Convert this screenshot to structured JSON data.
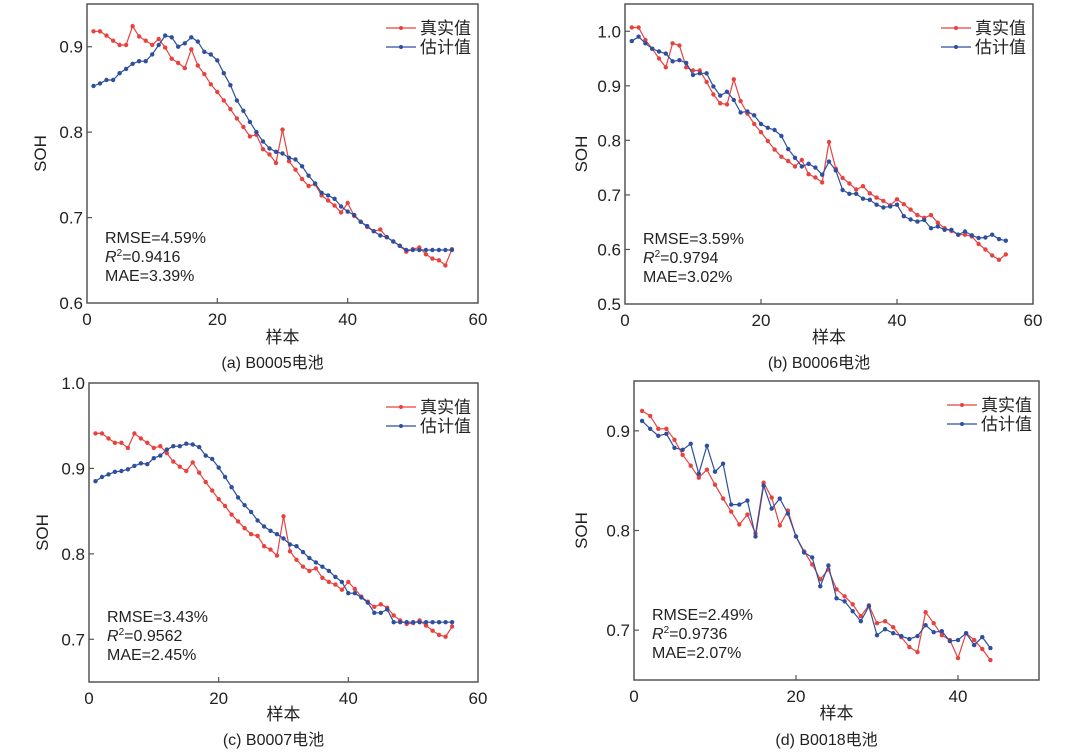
{
  "colors": {
    "real": "#e8423f",
    "estimate": "#2e4f9e",
    "axis": "#555555"
  },
  "chart_data": [
    {
      "id": "a",
      "type": "line",
      "caption": "(a) B0005电池",
      "xlabel": "样本",
      "ylabel": "SOH",
      "xlim": [
        0,
        60
      ],
      "ylim": [
        0.6,
        0.95
      ],
      "xticks": [
        0,
        20,
        40,
        60
      ],
      "yticks": [
        0.6,
        0.7,
        0.8,
        0.9
      ],
      "ytick_labels": [
        "0.6",
        "0.7",
        "0.8",
        "0.9"
      ],
      "legend": {
        "position": "top-right",
        "entries": [
          "真实值",
          "估计值"
        ]
      },
      "metrics": {
        "rmse": "RMSE=4.59%",
        "r2_symbol": "R",
        "r2_sup": "2",
        "r2_value": "=0.9416",
        "mae": "MAE=3.39%"
      },
      "series": [
        {
          "name": "真实值",
          "color": "#e8423f",
          "values": [
            0.918,
            0.918,
            0.913,
            0.907,
            0.902,
            0.902,
            0.924,
            0.912,
            0.907,
            0.902,
            0.909,
            0.899,
            0.886,
            0.881,
            0.875,
            0.897,
            0.878,
            0.868,
            0.856,
            0.847,
            0.837,
            0.827,
            0.816,
            0.806,
            0.795,
            0.797,
            0.78,
            0.774,
            0.764,
            0.803,
            0.766,
            0.756,
            0.745,
            0.737,
            0.739,
            0.726,
            0.72,
            0.714,
            0.706,
            0.717,
            0.702,
            0.695,
            0.689,
            0.684,
            0.686,
            0.677,
            0.672,
            0.667,
            0.66,
            0.663,
            0.665,
            0.657,
            0.652,
            0.65,
            0.644,
            0.663
          ]
        },
        {
          "name": "估计值",
          "color": "#2e4f9e",
          "values": [
            0.854,
            0.857,
            0.861,
            0.861,
            0.869,
            0.874,
            0.88,
            0.883,
            0.883,
            0.891,
            0.902,
            0.913,
            0.911,
            0.9,
            0.904,
            0.911,
            0.906,
            0.894,
            0.891,
            0.884,
            0.869,
            0.855,
            0.837,
            0.825,
            0.812,
            0.8,
            0.789,
            0.781,
            0.777,
            0.775,
            0.77,
            0.768,
            0.76,
            0.749,
            0.74,
            0.729,
            0.726,
            0.722,
            0.713,
            0.707,
            0.703,
            0.695,
            0.69,
            0.684,
            0.679,
            0.677,
            0.672,
            0.667,
            0.662,
            0.662,
            0.662,
            0.662,
            0.662,
            0.662,
            0.662,
            0.662
          ]
        }
      ]
    },
    {
      "id": "b",
      "type": "line",
      "caption": "(b) B0006电池",
      "xlabel": "样本",
      "ylabel": "SOH",
      "xlim": [
        0,
        60
      ],
      "ylim": [
        0.5,
        1.05
      ],
      "xticks": [
        0,
        20,
        40,
        60
      ],
      "yticks": [
        0.5,
        0.6,
        0.7,
        0.8,
        0.9,
        1.0
      ],
      "ytick_labels": [
        "0.5",
        "0.6",
        "0.7",
        "0.8",
        "0.9",
        "1.0"
      ],
      "legend": {
        "position": "top-right",
        "entries": [
          "真实值",
          "估计值"
        ]
      },
      "metrics": {
        "rmse": "RMSE=3.59%",
        "r2_symbol": "R",
        "r2_sup": "2",
        "r2_value": "=0.9794",
        "mae": "MAE=3.02%"
      },
      "series": [
        {
          "name": "真实值",
          "color": "#e8423f",
          "values": [
            1.007,
            1.007,
            0.984,
            0.968,
            0.95,
            0.934,
            0.978,
            0.974,
            0.934,
            0.928,
            0.928,
            0.907,
            0.884,
            0.868,
            0.866,
            0.912,
            0.872,
            0.849,
            0.83,
            0.815,
            0.799,
            0.783,
            0.77,
            0.762,
            0.752,
            0.764,
            0.738,
            0.732,
            0.723,
            0.797,
            0.748,
            0.731,
            0.721,
            0.71,
            0.716,
            0.703,
            0.695,
            0.689,
            0.681,
            0.692,
            0.683,
            0.673,
            0.663,
            0.658,
            0.663,
            0.649,
            0.639,
            0.634,
            0.627,
            0.627,
            0.624,
            0.61,
            0.6,
            0.589,
            0.581,
            0.591
          ]
        },
        {
          "name": "估计值",
          "color": "#2e4f9e",
          "values": [
            0.982,
            0.99,
            0.978,
            0.968,
            0.963,
            0.959,
            0.945,
            0.947,
            0.942,
            0.92,
            0.923,
            0.923,
            0.899,
            0.882,
            0.889,
            0.874,
            0.851,
            0.853,
            0.846,
            0.83,
            0.823,
            0.819,
            0.808,
            0.784,
            0.768,
            0.752,
            0.757,
            0.75,
            0.737,
            0.761,
            0.745,
            0.709,
            0.702,
            0.702,
            0.693,
            0.691,
            0.682,
            0.677,
            0.679,
            0.682,
            0.661,
            0.655,
            0.651,
            0.654,
            0.639,
            0.642,
            0.636,
            0.636,
            0.627,
            0.633,
            0.626,
            0.621,
            0.622,
            0.627,
            0.619,
            0.616
          ]
        }
      ]
    },
    {
      "id": "c",
      "type": "line",
      "caption": "(c) B0007电池",
      "xlabel": "样本",
      "ylabel": "SOH",
      "xlim": [
        0,
        60
      ],
      "ylim": [
        0.65,
        1.0
      ],
      "xticks": [
        0,
        20,
        40,
        60
      ],
      "yticks": [
        0.7,
        0.8,
        0.9,
        1.0
      ],
      "ytick_labels": [
        "0.7",
        "0.8",
        "0.9",
        "1.0"
      ],
      "legend": {
        "position": "top-right",
        "entries": [
          "真实值",
          "估计值"
        ]
      },
      "metrics": {
        "rmse": "RMSE=3.43%",
        "r2_symbol": "R",
        "r2_sup": "2",
        "r2_value": "=0.9562",
        "mae": "MAE=2.45%"
      },
      "series": [
        {
          "name": "真实值",
          "color": "#e8423f",
          "values": [
            0.941,
            0.941,
            0.935,
            0.93,
            0.93,
            0.924,
            0.941,
            0.935,
            0.93,
            0.924,
            0.926,
            0.918,
            0.908,
            0.902,
            0.897,
            0.907,
            0.895,
            0.884,
            0.874,
            0.864,
            0.856,
            0.846,
            0.838,
            0.83,
            0.823,
            0.821,
            0.809,
            0.805,
            0.798,
            0.844,
            0.803,
            0.793,
            0.785,
            0.78,
            0.783,
            0.772,
            0.767,
            0.764,
            0.758,
            0.767,
            0.759,
            0.75,
            0.744,
            0.738,
            0.741,
            0.737,
            0.728,
            0.722,
            0.718,
            0.719,
            0.722,
            0.716,
            0.71,
            0.705,
            0.703,
            0.715
          ]
        },
        {
          "name": "估计值",
          "color": "#2e4f9e",
          "values": [
            0.885,
            0.89,
            0.893,
            0.896,
            0.897,
            0.899,
            0.903,
            0.906,
            0.905,
            0.912,
            0.915,
            0.922,
            0.926,
            0.926,
            0.929,
            0.928,
            0.925,
            0.915,
            0.911,
            0.901,
            0.89,
            0.878,
            0.866,
            0.857,
            0.849,
            0.839,
            0.832,
            0.827,
            0.823,
            0.818,
            0.811,
            0.809,
            0.802,
            0.795,
            0.79,
            0.785,
            0.78,
            0.773,
            0.767,
            0.754,
            0.754,
            0.749,
            0.743,
            0.731,
            0.731,
            0.735,
            0.72,
            0.72,
            0.72,
            0.72,
            0.72,
            0.72,
            0.72,
            0.72,
            0.72,
            0.72
          ]
        }
      ]
    },
    {
      "id": "d",
      "type": "line",
      "caption": "(d) B0018电池",
      "xlabel": "样本",
      "ylabel": "SOH",
      "xlim": [
        0,
        50
      ],
      "ylim": [
        0.65,
        0.95
      ],
      "xticks": [
        0,
        20,
        40
      ],
      "yticks": [
        0.7,
        0.8,
        0.9
      ],
      "ytick_labels": [
        "0.7",
        "0.8",
        "0.9"
      ],
      "legend": {
        "position": "top-right",
        "entries": [
          "真实值",
          "估计值"
        ]
      },
      "metrics": {
        "rmse": "RMSE=2.49%",
        "r2_symbol": "R",
        "r2_sup": "2",
        "r2_value": "=0.9736",
        "mae": "MAE=2.07%"
      },
      "series": [
        {
          "name": "真实值",
          "color": "#e8423f",
          "values": [
            0.92,
            0.915,
            0.902,
            0.902,
            0.891,
            0.876,
            0.865,
            0.853,
            0.861,
            0.846,
            0.832,
            0.819,
            0.806,
            0.816,
            0.797,
            0.848,
            0.833,
            0.805,
            0.82,
            0.794,
            0.779,
            0.766,
            0.751,
            0.761,
            0.741,
            0.734,
            0.726,
            0.714,
            0.725,
            0.707,
            0.709,
            0.703,
            0.693,
            0.683,
            0.678,
            0.718,
            0.707,
            0.695,
            0.69,
            0.672,
            0.697,
            0.69,
            0.681,
            0.67
          ]
        },
        {
          "name": "估计值",
          "color": "#2e4f9e",
          "values": [
            0.91,
            0.902,
            0.895,
            0.897,
            0.883,
            0.881,
            0.887,
            0.857,
            0.885,
            0.859,
            0.867,
            0.826,
            0.826,
            0.83,
            0.794,
            0.845,
            0.822,
            0.832,
            0.817,
            0.794,
            0.778,
            0.773,
            0.744,
            0.765,
            0.732,
            0.729,
            0.719,
            0.709,
            0.724,
            0.695,
            0.701,
            0.697,
            0.694,
            0.691,
            0.694,
            0.705,
            0.698,
            0.699,
            0.689,
            0.69,
            0.697,
            0.685,
            0.693,
            0.682
          ]
        }
      ]
    }
  ]
}
